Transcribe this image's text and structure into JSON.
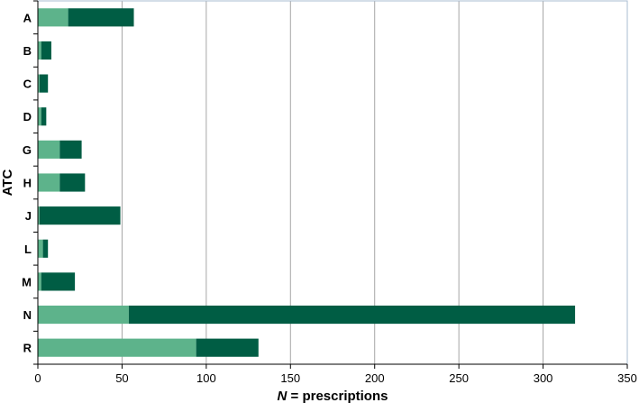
{
  "chart_data": {
    "type": "bar",
    "orientation": "horizontal",
    "stacked": true,
    "categories": [
      "A",
      "B",
      "C",
      "D",
      "G",
      "H",
      "J",
      "L",
      "M",
      "N",
      "R"
    ],
    "series": [
      {
        "color": "#5db38b",
        "values": [
          18,
          2,
          1,
          2,
          13,
          13,
          1,
          3,
          2,
          54,
          94
        ]
      },
      {
        "color": "#005d44",
        "values": [
          39,
          6,
          5,
          3,
          13,
          15,
          48,
          3,
          20,
          265,
          37
        ]
      }
    ],
    "title": "",
    "xlabel_italic": "N",
    "xlabel_rest": " = prescriptions",
    "ylabel": "ATC",
    "xlim": [
      0,
      350
    ],
    "xticks": [
      "0",
      "50",
      "100",
      "150",
      "200",
      "250",
      "300",
      "350"
    ],
    "grid": "vertical"
  }
}
